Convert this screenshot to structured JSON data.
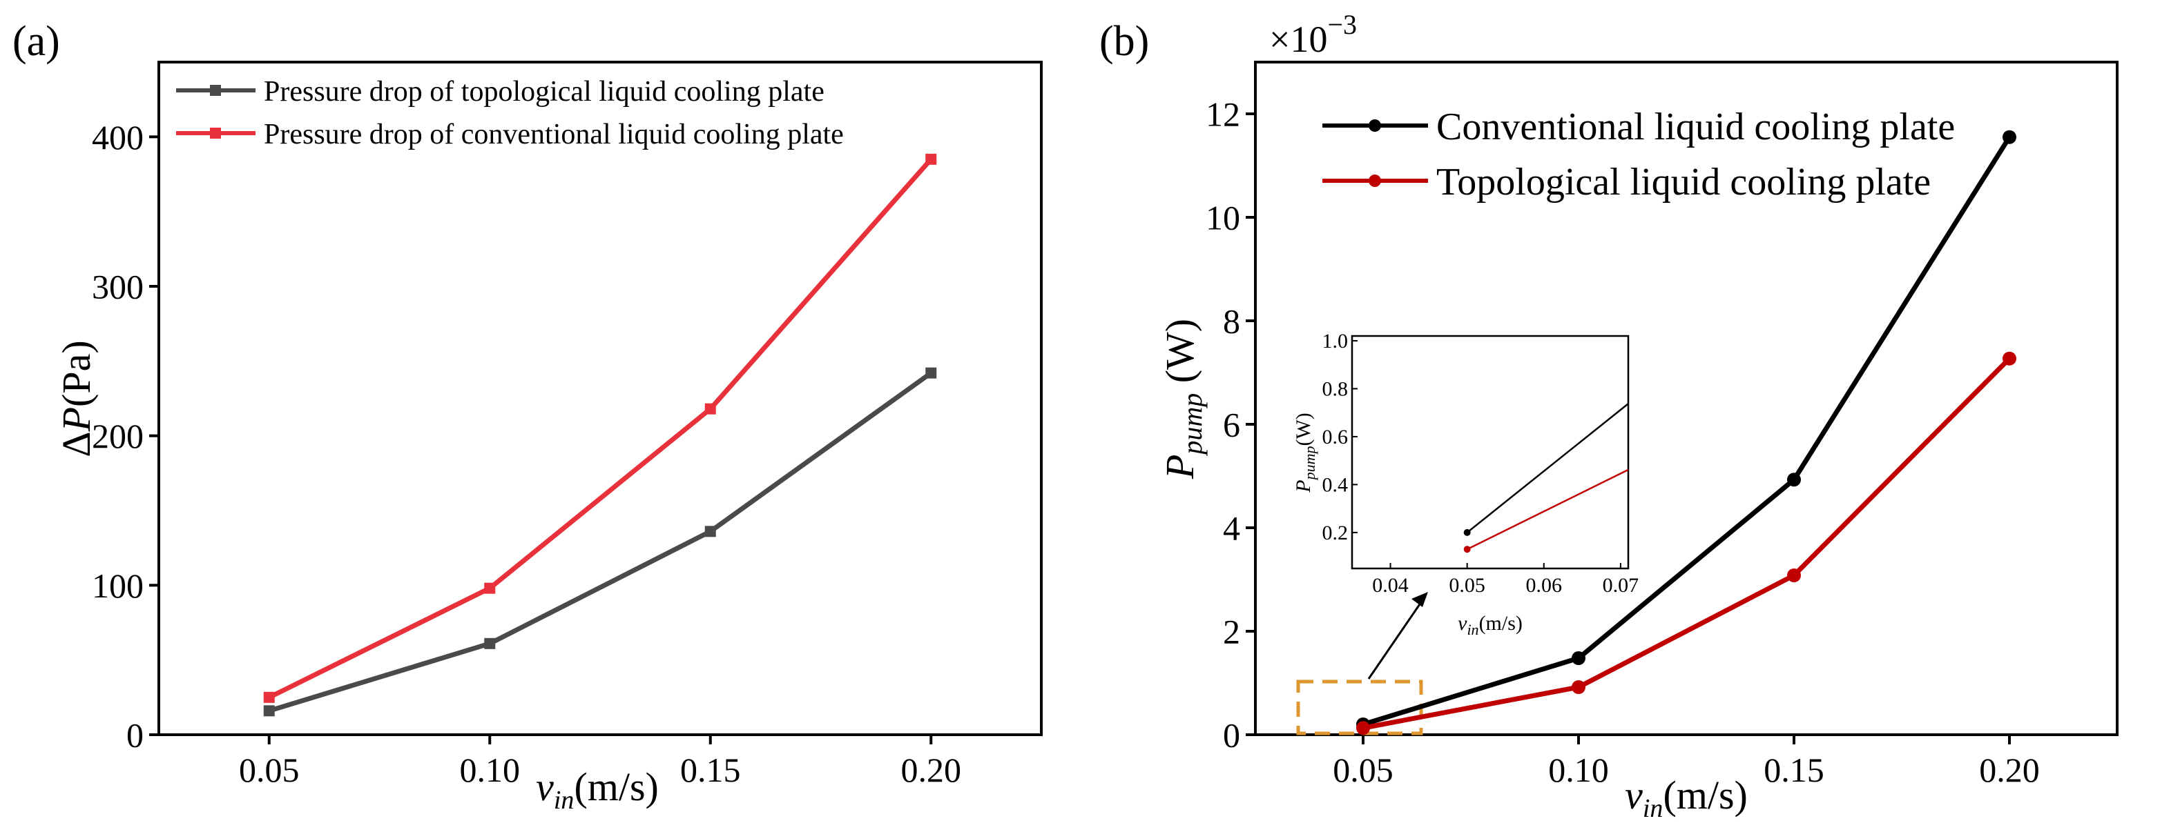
{
  "chart_data": [
    {
      "panel_label": "(a)",
      "type": "line",
      "x": [
        0.05,
        0.1,
        0.15,
        0.2
      ],
      "xticks": [
        "0.05",
        "0.10",
        "0.15",
        "0.20"
      ],
      "xlim": [
        0.025,
        0.225
      ],
      "ylim": [
        0,
        450
      ],
      "yticks": [
        "0",
        "100",
        "200",
        "300",
        "400"
      ],
      "xlabel": {
        "base": "v",
        "sub": "in",
        "rest": "(m/s)"
      },
      "ylabel": {
        "delta": "Δ",
        "var": "P",
        "rest": "(Pa)"
      },
      "legend_position": "top-left",
      "series": [
        {
          "name": "Pressure drop of topological liquid cooling plate",
          "color": "#4a4a4a",
          "marker": "square",
          "values": [
            16,
            61,
            136,
            242
          ]
        },
        {
          "name": "Pressure drop of conventional liquid cooling plate",
          "color": "#e8313a",
          "marker": "square",
          "values": [
            25,
            98,
            218,
            385
          ]
        }
      ]
    },
    {
      "panel_label": "(b)",
      "type": "line",
      "x": [
        0.05,
        0.1,
        0.15,
        0.2
      ],
      "xticks": [
        "0.05",
        "0.10",
        "0.15",
        "0.20"
      ],
      "xlim": [
        0.025,
        0.225
      ],
      "ylim": [
        0,
        13
      ],
      "yticks": [
        "0",
        "2",
        "4",
        "6",
        "8",
        "10",
        "12"
      ],
      "scale_label": {
        "base": "×10",
        "exp": "−3"
      },
      "xlabel": {
        "base": "v",
        "sub": "in",
        "rest": "(m/s)"
      },
      "ylabel": {
        "var": "P",
        "sub": "pump",
        "rest": " (W)"
      },
      "legend_position": "top-left",
      "series": [
        {
          "name": "Conventional liquid cooling plate",
          "color": "#000000",
          "marker": "circle",
          "values": [
            0.2,
            1.48,
            4.93,
            11.55
          ]
        },
        {
          "name": "Topological liquid cooling plate",
          "color": "#c00000",
          "marker": "circle",
          "values": [
            0.13,
            0.92,
            3.08,
            7.27
          ]
        }
      ],
      "inset": {
        "xlim": [
          0.035,
          0.071
        ],
        "ylim": [
          0.05,
          1.02
        ],
        "xticks": [
          "0.04",
          "0.05",
          "0.06",
          "0.07"
        ],
        "yticks": [
          "0.2",
          "0.4",
          "0.6",
          "0.8",
          "1.0"
        ],
        "xlabel": {
          "base": "v",
          "sub": "in",
          "rest": "(m/s)"
        },
        "ylabel": {
          "var": "P",
          "sub": "pump",
          "rest": "(W)"
        }
      }
    }
  ]
}
